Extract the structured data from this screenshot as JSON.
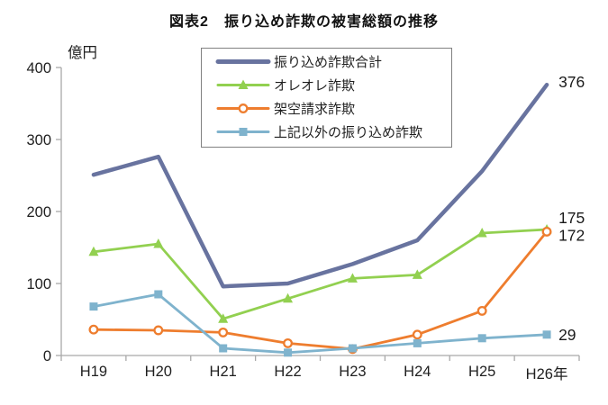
{
  "chart_data": {
    "type": "line",
    "title": "図表2　振り込め詐欺の被害総額の推移",
    "unit_label": "億円",
    "xlabel": "",
    "ylabel": "億円",
    "ylim": [
      0,
      400
    ],
    "yticks": [
      0,
      100,
      200,
      300,
      400
    ],
    "grid": false,
    "legend_position": "top-center",
    "categories": [
      "H19",
      "H20",
      "H21",
      "H22",
      "H23",
      "H24",
      "H25",
      "H26年"
    ],
    "series": [
      {
        "name": "振り込め詐欺合計",
        "color": "#68739F",
        "marker": "none",
        "values": [
          251,
          276,
          96,
          100,
          127,
          160,
          256,
          376
        ],
        "end_label": "376"
      },
      {
        "name": "オレオレ詐欺",
        "color": "#92D050",
        "marker": "triangle",
        "values": [
          144,
          155,
          51,
          79,
          107,
          112,
          170,
          175
        ],
        "end_label": "175"
      },
      {
        "name": "架空請求詐欺",
        "color": "#EE7D2E",
        "marker": "circle",
        "values": [
          36,
          35,
          32,
          17,
          9,
          29,
          62,
          172
        ],
        "end_label": "172"
      },
      {
        "name": "上記以外の振り込め詐欺",
        "color": "#7FB3CD",
        "marker": "square",
        "values": [
          68,
          85,
          10,
          4,
          10,
          17,
          24,
          29
        ],
        "end_label": "29"
      }
    ]
  }
}
